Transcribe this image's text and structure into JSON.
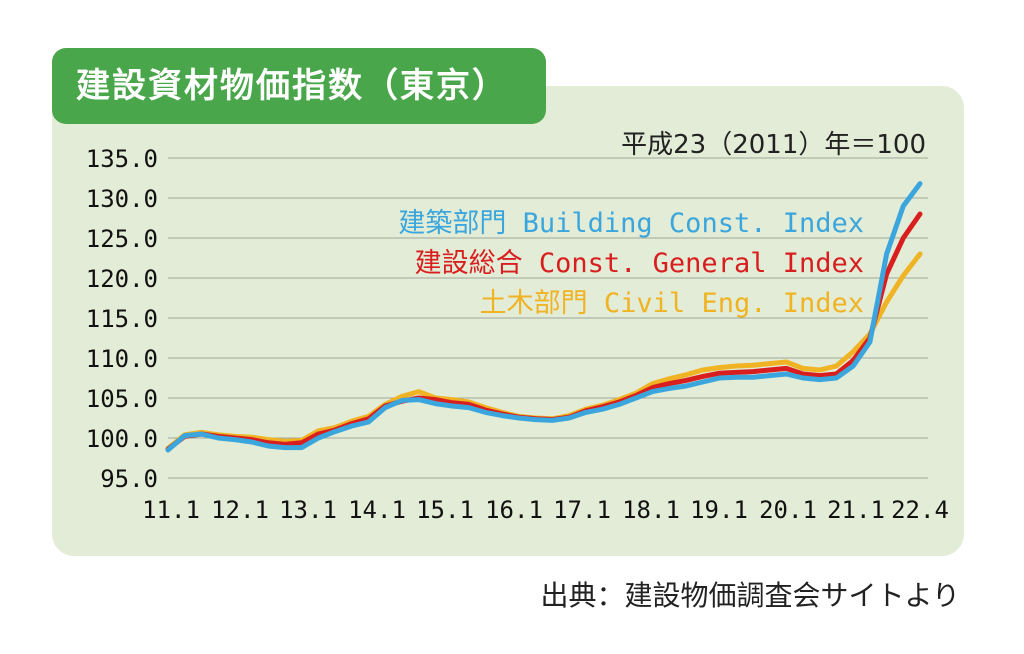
{
  "title": "建設資材物価指数（東京）",
  "base_note": "平成23（2011）年＝100",
  "source": "出典：建設物価調査会サイトより",
  "colors": {
    "panel_bg": "#e3ecd6",
    "title_bg": "#4aa64a",
    "building": "#3aa6dd",
    "general": "#d81e1e",
    "civil": "#f0b323"
  },
  "chart_data": {
    "type": "line",
    "ylim": [
      95,
      135
    ],
    "yticks": [
      "135.0",
      "130.0",
      "125.0",
      "120.0",
      "115.0",
      "110.0",
      "105.0",
      "100.0",
      "95.0"
    ],
    "xticks": [
      "11.1",
      "12.1",
      "13.1",
      "14.1",
      "15.1",
      "16.1",
      "17.1",
      "18.1",
      "19.1",
      "20.1",
      "21.1",
      "22.4"
    ],
    "grid": true,
    "legend_placement": "top-right",
    "x": [
      2011.0,
      2011.25,
      2011.5,
      2011.75,
      2012.0,
      2012.25,
      2012.5,
      2012.75,
      2013.0,
      2013.25,
      2013.5,
      2013.75,
      2014.0,
      2014.25,
      2014.5,
      2014.75,
      2015.0,
      2015.25,
      2015.5,
      2015.75,
      2016.0,
      2016.25,
      2016.5,
      2016.75,
      2017.0,
      2017.25,
      2017.5,
      2017.75,
      2018.0,
      2018.25,
      2018.5,
      2018.75,
      2019.0,
      2019.25,
      2019.5,
      2019.75,
      2020.0,
      2020.25,
      2020.5,
      2020.75,
      2021.0,
      2021.25,
      2021.5,
      2021.75,
      2022.0,
      2022.25
    ],
    "series": [
      {
        "name": "建築部門 Building Const. Index",
        "color_key": "building",
        "values": [
          98.5,
          100.3,
          100.5,
          100.0,
          99.8,
          99.5,
          99.0,
          98.8,
          98.8,
          100.0,
          100.8,
          101.5,
          102.0,
          103.8,
          104.7,
          104.8,
          104.3,
          104.0,
          103.8,
          103.2,
          102.8,
          102.5,
          102.3,
          102.2,
          102.5,
          103.2,
          103.6,
          104.2,
          105.0,
          105.8,
          106.2,
          106.5,
          107.0,
          107.5,
          107.6,
          107.6,
          107.8,
          108.0,
          107.5,
          107.3,
          107.5,
          109.0,
          112.0,
          123.0,
          129.0,
          131.8
        ]
      },
      {
        "name": "建設総合 Const. General Index",
        "color_key": "general",
        "values": [
          98.6,
          100.2,
          100.5,
          100.2,
          100.0,
          99.8,
          99.4,
          99.2,
          99.4,
          100.5,
          101.0,
          101.8,
          102.4,
          104.0,
          104.6,
          105.0,
          104.8,
          104.4,
          104.2,
          103.5,
          103.0,
          102.6,
          102.4,
          102.3,
          102.6,
          103.4,
          103.9,
          104.5,
          105.3,
          106.3,
          106.8,
          107.2,
          107.7,
          108.1,
          108.2,
          108.3,
          108.5,
          108.7,
          108.0,
          107.8,
          108.0,
          109.7,
          112.5,
          120.5,
          125.0,
          128.0
        ]
      },
      {
        "name": "土木部門 Civil Eng. Index",
        "color_key": "civil",
        "values": [
          98.7,
          100.4,
          100.7,
          100.4,
          100.2,
          100.1,
          99.8,
          99.6,
          99.7,
          100.9,
          101.3,
          102.1,
          102.7,
          104.2,
          105.2,
          105.8,
          105.0,
          104.8,
          104.5,
          103.8,
          103.2,
          102.7,
          102.5,
          102.4,
          102.8,
          103.6,
          104.1,
          104.8,
          105.6,
          106.8,
          107.4,
          107.9,
          108.5,
          108.8,
          109.0,
          109.1,
          109.3,
          109.5,
          108.7,
          108.5,
          109.0,
          110.8,
          113.0,
          117.0,
          120.3,
          123.0
        ]
      }
    ]
  }
}
